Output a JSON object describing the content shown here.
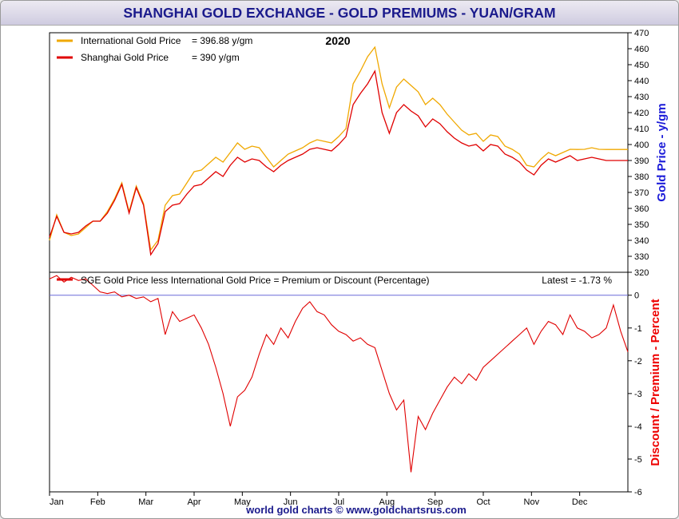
{
  "title": "SHANGHAI GOLD EXCHANGE - GOLD PREMIUMS - YUAN/GRAM",
  "footer": "world gold charts © www.goldchartsrus.com",
  "chart_data": [
    {
      "type": "line",
      "title": "2020",
      "ylabel": "Gold Price - y/gm",
      "ylim": [
        320,
        470
      ],
      "yticks": [
        320,
        330,
        340,
        350,
        360,
        370,
        380,
        390,
        400,
        410,
        420,
        430,
        440,
        450,
        460,
        470
      ],
      "legend_position": "top-left",
      "legend": [
        {
          "label": "International Gold Price",
          "value_text": "= 396.88 y/gm"
        },
        {
          "label": "Shanghai Gold Price",
          "value_text": "= 390 y/gm"
        }
      ],
      "x": [
        "Jan",
        "Jan",
        "Jan",
        "Jan",
        "Jan",
        "Jan",
        "Feb",
        "Feb",
        "Feb",
        "Feb",
        "Feb",
        "Mar",
        "Mar",
        "Mar",
        "Mar",
        "Mar",
        "Mar",
        "Mar",
        "Apr",
        "Apr",
        "Apr",
        "Apr",
        "Apr",
        "Apr",
        "Apr",
        "May",
        "May",
        "May",
        "May",
        "May",
        "May",
        "May",
        "Jun",
        "Jun",
        "Jun",
        "Jun",
        "Jun",
        "Jun",
        "Jun",
        "Jul",
        "Jul",
        "Jul",
        "Jul",
        "Jul",
        "Jul",
        "Jul",
        "Aug",
        "Aug",
        "Aug",
        "Aug",
        "Aug",
        "Aug",
        "Aug",
        "Sep",
        "Sep",
        "Sep",
        "Sep",
        "Sep",
        "Sep",
        "Sep",
        "Oct",
        "Oct",
        "Oct",
        "Oct",
        "Oct",
        "Oct",
        "Oct",
        "Nov",
        "Nov",
        "Nov",
        "Nov",
        "Nov",
        "Nov",
        "Nov",
        "Dec",
        "Dec",
        "Dec",
        "Dec",
        "Dec",
        "Dec",
        "Dec"
      ],
      "series": [
        {
          "name": "International Gold Price",
          "color": "#f0a800",
          "values": [
            340,
            356,
            345,
            343,
            344,
            348,
            352,
            352,
            358,
            366,
            376,
            358,
            374,
            363,
            334,
            340,
            362,
            368,
            369,
            376,
            383,
            384,
            388,
            392,
            389,
            395,
            401,
            397,
            399,
            398,
            392,
            386,
            390,
            394,
            396,
            398,
            401,
            403,
            402,
            401,
            405,
            410,
            438,
            446,
            455,
            461,
            438,
            423,
            436,
            441,
            437,
            433,
            425,
            429,
            425,
            419,
            414,
            409,
            406,
            407,
            402,
            406,
            405,
            399,
            397,
            394,
            387,
            386,
            391,
            395,
            393,
            395,
            397,
            396.88,
            397,
            398,
            397,
            396.88,
            396.88,
            396.88,
            396.88
          ]
        },
        {
          "name": "Shanghai Gold Price",
          "color": "#e00000",
          "values": [
            342,
            355,
            345,
            344,
            345,
            349,
            352,
            352,
            357,
            365,
            375,
            357,
            373,
            362,
            331,
            338,
            358,
            362,
            363,
            369,
            374,
            375,
            379,
            383,
            380,
            387,
            392,
            389,
            391,
            390,
            386,
            383,
            387,
            390,
            392,
            394,
            397,
            398,
            397,
            396,
            400,
            405,
            425,
            432,
            438,
            446,
            420,
            407,
            420,
            425,
            421,
            418,
            411,
            416,
            413,
            408,
            404,
            401,
            399,
            400,
            396,
            400,
            399,
            394,
            392,
            389,
            384,
            381,
            387,
            391,
            389,
            391,
            393,
            390,
            391,
            392,
            391,
            390,
            390,
            390,
            390
          ]
        }
      ]
    },
    {
      "type": "line",
      "ylabel": "Discount / Premium - Percent",
      "ylim": [
        -6,
        0.7
      ],
      "yticks": [
        -6,
        -5,
        -4,
        -3,
        -2,
        -1,
        0
      ],
      "legend": [
        {
          "label": "SGE Gold Price less International Gold Price = Premium or Discount (Percentage)"
        }
      ],
      "annotation": "Latest = -1.73 %",
      "reference_line": 0,
      "x_tick_labels": [
        "Jan",
        "Feb",
        "Mar",
        "Apr",
        "May",
        "Jun",
        "Jul",
        "Aug",
        "Sep",
        "Oct",
        "Nov",
        "Dec"
      ],
      "series": [
        {
          "name": "SGE Gold Price less International Gold Price = Premium or Discount (Percentage)",
          "color": "#e00000",
          "values": [
            0.5,
            0.6,
            0.4,
            0.55,
            0.45,
            0.5,
            0.3,
            0.1,
            0.05,
            0.1,
            -0.05,
            0.0,
            -0.1,
            -0.05,
            -0.2,
            -0.1,
            -1.2,
            -0.5,
            -0.8,
            -0.7,
            -0.6,
            -1.0,
            -1.5,
            -2.2,
            -3.0,
            -4.0,
            -3.1,
            -2.9,
            -2.5,
            -1.8,
            -1.2,
            -1.5,
            -1.0,
            -1.3,
            -0.8,
            -0.4,
            -0.2,
            -0.5,
            -0.6,
            -0.9,
            -1.1,
            -1.2,
            -1.4,
            -1.3,
            -1.5,
            -1.6,
            -2.3,
            -3.0,
            -3.5,
            -3.2,
            -5.4,
            -3.7,
            -4.1,
            -3.6,
            -3.2,
            -2.8,
            -2.5,
            -2.7,
            -2.4,
            -2.6,
            -2.2,
            -2.0,
            -1.8,
            -1.6,
            -1.4,
            -1.2,
            -1.0,
            -1.5,
            -1.1,
            -0.8,
            -0.9,
            -1.2,
            -0.6,
            -1.0,
            -1.1,
            -1.3,
            -1.2,
            -1.0,
            -0.3,
            -1.1,
            -1.73
          ]
        }
      ]
    }
  ]
}
